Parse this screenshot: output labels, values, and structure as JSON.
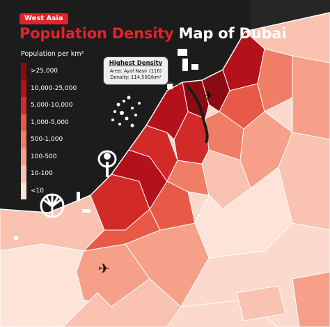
{
  "header": {
    "badge": "West Asia",
    "title_accent": "Population Density",
    "title_rest": " Map of Dubai"
  },
  "legend": {
    "title": "Population per km²",
    "items": [
      {
        "label": ">25,000",
        "color": "#8b0b12"
      },
      {
        "label": "10,000-25,000",
        "color": "#b3121b"
      },
      {
        "label": "5,000-10,000",
        "color": "#d12a28"
      },
      {
        "label": "1,000-5,000",
        "color": "#e85a47"
      },
      {
        "label": "500-1,000",
        "color": "#f07d66"
      },
      {
        "label": "100-500",
        "color": "#f6a08a"
      },
      {
        "label": "10-100",
        "color": "#f9c2b1"
      },
      {
        "label": "<10",
        "color": "#fde3d8"
      }
    ]
  },
  "callout": {
    "title": "Highest Density",
    "area": "Area: Ayal Nasir (116)",
    "density": "Density: 114,500/km²"
  },
  "map": {
    "land_border_color": "#ffffff",
    "background_color": "#1c1c1c",
    "icons": [
      "airplane-icon",
      "airplane-icon"
    ]
  }
}
